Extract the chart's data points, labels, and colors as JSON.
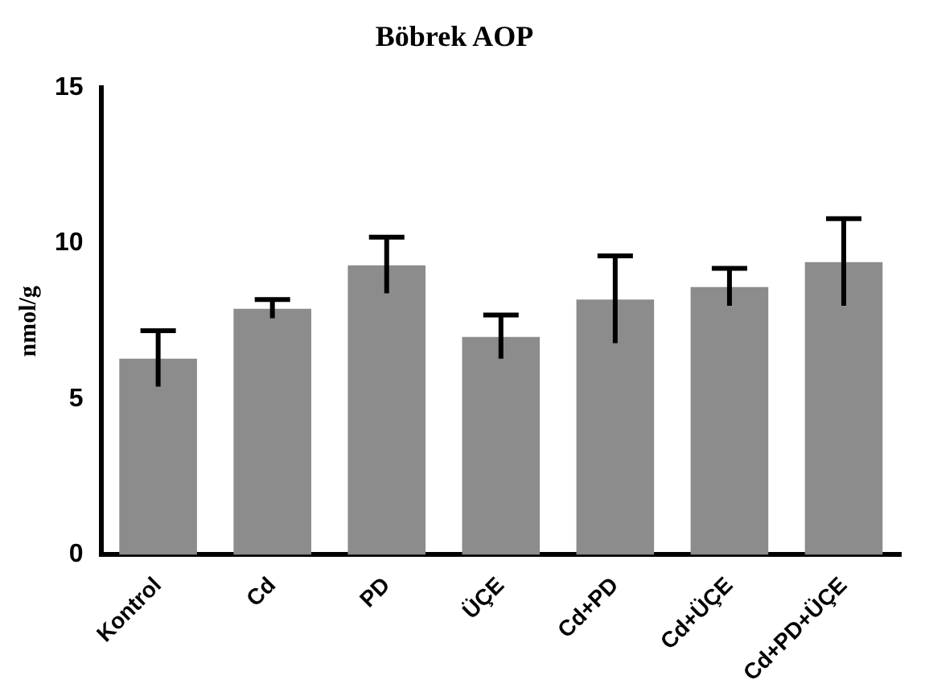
{
  "chart_data": {
    "type": "bar",
    "title": "Böbrek AOP",
    "ylabel": "nmol/g",
    "categories": [
      "Kontrol",
      "Cd",
      "PD",
      "ÜÇE",
      "Cd+PD",
      "Cd+ÜÇE",
      "Cd+PD+ÜÇE"
    ],
    "values": [
      6.3,
      7.9,
      9.3,
      7.0,
      8.2,
      8.6,
      9.4
    ],
    "errors": [
      0.9,
      0.3,
      0.9,
      0.7,
      1.4,
      0.6,
      1.4
    ],
    "color": "#8c8c8c",
    "ylim": [
      0,
      15
    ],
    "yticks": [
      0,
      5,
      10,
      15
    ],
    "grid": false,
    "legend": false
  }
}
